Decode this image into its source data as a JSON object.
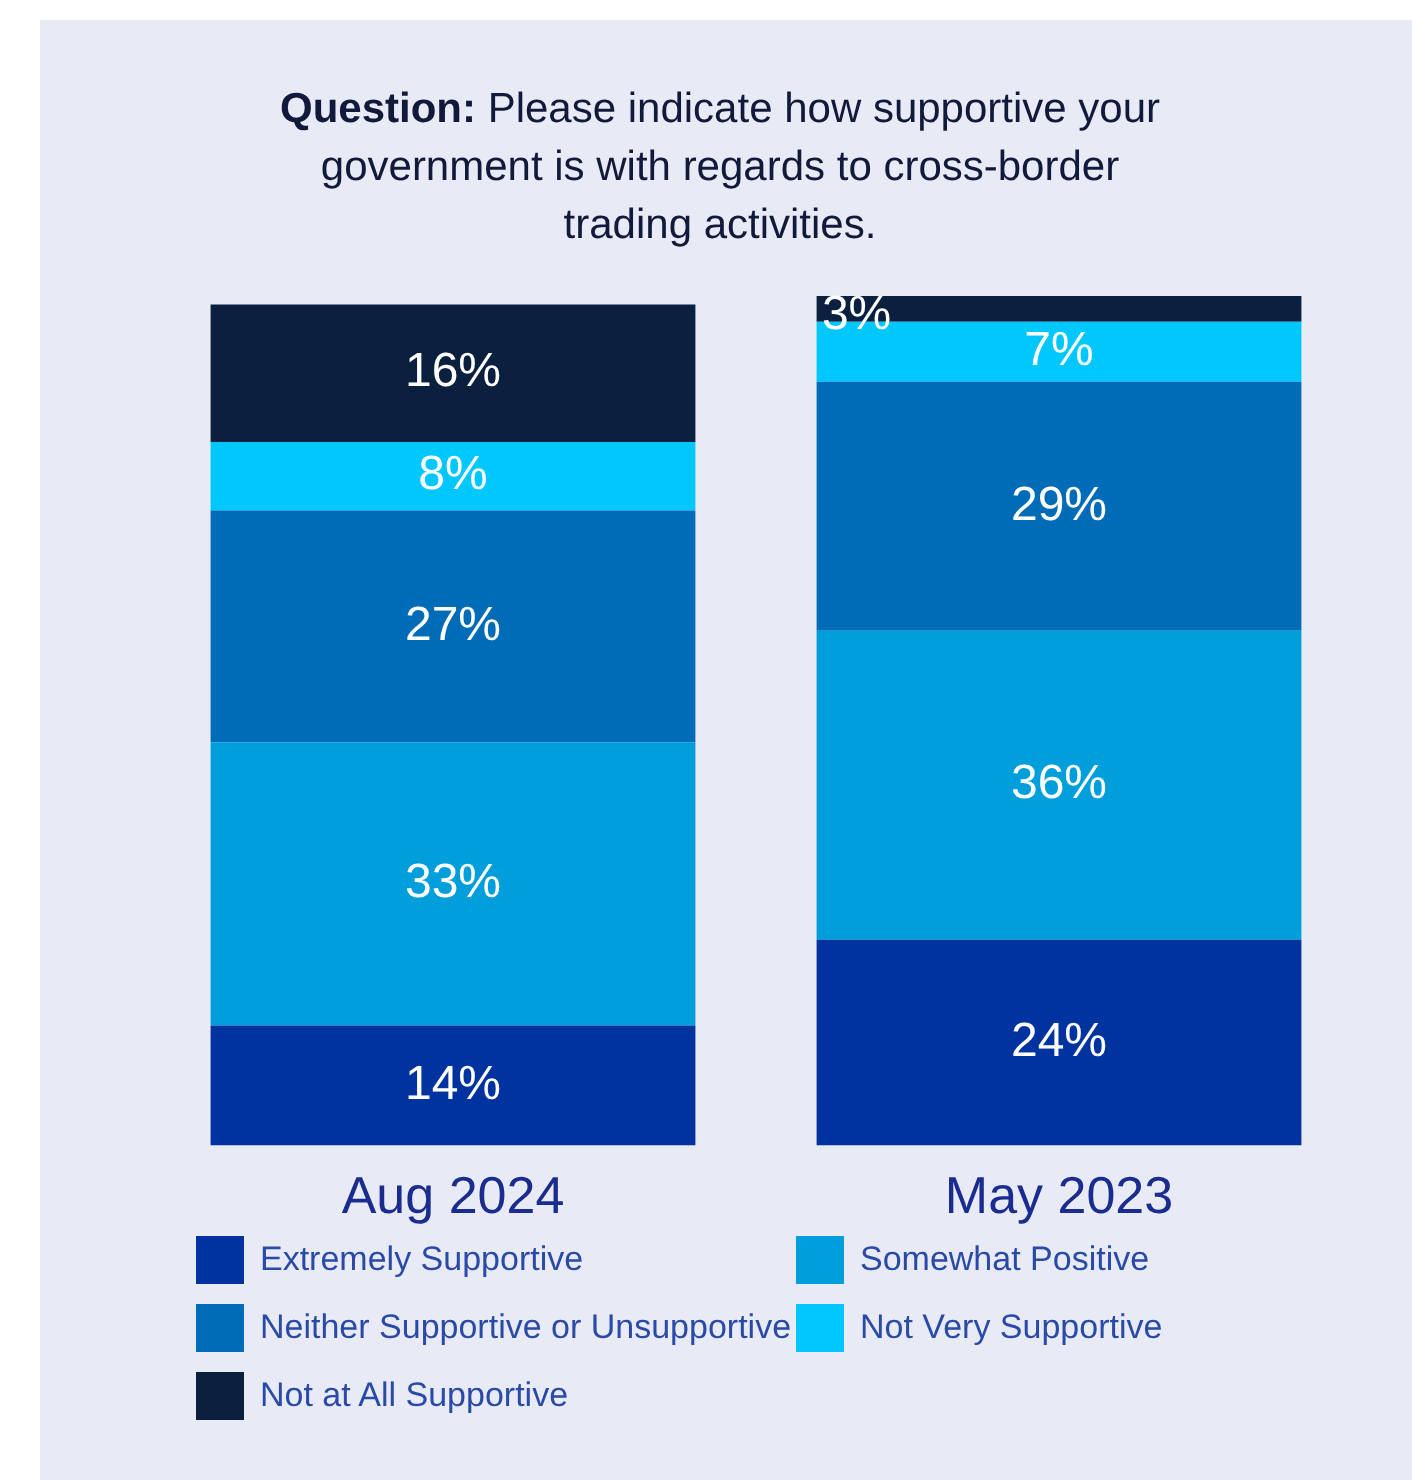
{
  "chart_data": {
    "type": "bar",
    "title": "Question: Please indicate how supportive your government is with regards to cross-border trading activities.",
    "categories": [
      "Aug 2024",
      "May 2023"
    ],
    "stacked": true,
    "legend": "bottom",
    "series": [
      {
        "name": "Extremely Supportive",
        "color": "#0033a0",
        "values": [
          14,
          24
        ],
        "value_labels": [
          "14%",
          "24%"
        ]
      },
      {
        "name": "Somewhat Positive",
        "color": "#009fdb",
        "values": [
          33,
          36
        ],
        "value_labels": [
          "33%",
          "36%"
        ]
      },
      {
        "name": "Neither Supportive or Unsupportive",
        "color": "#006bb6",
        "values": [
          27,
          29
        ],
        "value_labels": [
          "27%",
          "29%"
        ]
      },
      {
        "name": "Not Very Supportive",
        "color": "#00c8ff",
        "values": [
          8,
          7
        ],
        "value_labels": [
          "8%",
          "7%"
        ]
      },
      {
        "name": "Not at All Supportive",
        "color": "#0b1f3f",
        "values": [
          16,
          3
        ],
        "value_labels": [
          "16%",
          "3%"
        ]
      }
    ]
  }
}
